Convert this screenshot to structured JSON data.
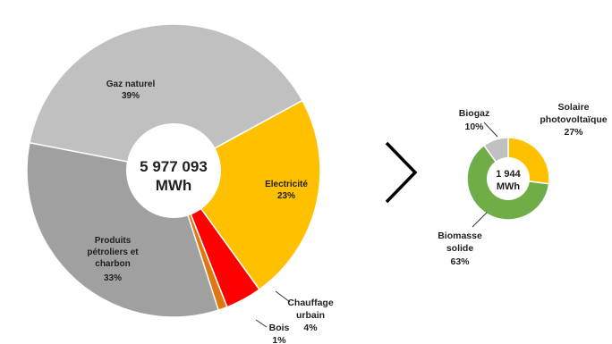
{
  "chart_data": [
    {
      "type": "pie",
      "center_label": [
        "5 977 093",
        "MWh"
      ],
      "slices": [
        {
          "name": [
            "Gaz naturel"
          ],
          "pct_label": "39%",
          "value": 39,
          "color": "#c0c0c0"
        },
        {
          "name": [
            "Electricité"
          ],
          "pct_label": "23%",
          "value": 23,
          "color": "#ffc000"
        },
        {
          "name": [
            "Chauffage",
            "urbain"
          ],
          "pct_label": "4%",
          "value": 4,
          "color": "#ff0000"
        },
        {
          "name": [
            "Bois"
          ],
          "pct_label": "1%",
          "value": 1,
          "color": "#e07810"
        },
        {
          "name": [
            "Produits",
            "pétroliers et",
            "charbon"
          ],
          "pct_label": "33%",
          "value": 33,
          "color": "#a0a0a0"
        }
      ]
    },
    {
      "type": "pie",
      "center_label": [
        "1 944",
        "MWh"
      ],
      "slices": [
        {
          "name": [
            "Solaire",
            "photovoltaïque"
          ],
          "pct_label": "27%",
          "value": 27,
          "color": "#ffc000"
        },
        {
          "name": [
            "Biomasse",
            "solide"
          ],
          "pct_label": "63%",
          "value": 63,
          "color": "#70ad47"
        },
        {
          "name": [
            "Biogaz"
          ],
          "pct_label": "10%",
          "value": 10,
          "color": "#c0c0c0"
        }
      ]
    }
  ],
  "separator_symbol": "chevron-right"
}
